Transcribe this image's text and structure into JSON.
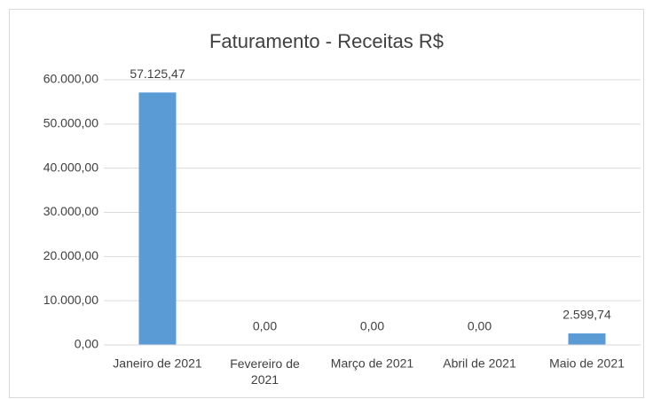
{
  "chart_data": {
    "type": "bar",
    "title": "Faturamento - Receitas R$",
    "categories": [
      "Janeiro de 2021",
      "Fevereiro de 2021",
      "Março de 2021",
      "Abril de 2021",
      "Maio de 2021"
    ],
    "values": [
      57125.47,
      0,
      0,
      0,
      2599.74
    ],
    "value_labels": [
      "57.125,47",
      "0,00",
      "0,00",
      "0,00",
      "2.599,74"
    ],
    "color": "#5b9bd5",
    "ylim": [
      0,
      60000
    ],
    "yticks": [
      {
        "value": 0,
        "label": "0,00"
      },
      {
        "value": 10000,
        "label": "10.000,00"
      },
      {
        "value": 20000,
        "label": "20.000,00"
      },
      {
        "value": 30000,
        "label": "30.000,00"
      },
      {
        "value": 40000,
        "label": "40.000,00"
      },
      {
        "value": 50000,
        "label": "50.000,00"
      },
      {
        "value": 60000,
        "label": "60.000,00"
      }
    ],
    "grid": true
  }
}
